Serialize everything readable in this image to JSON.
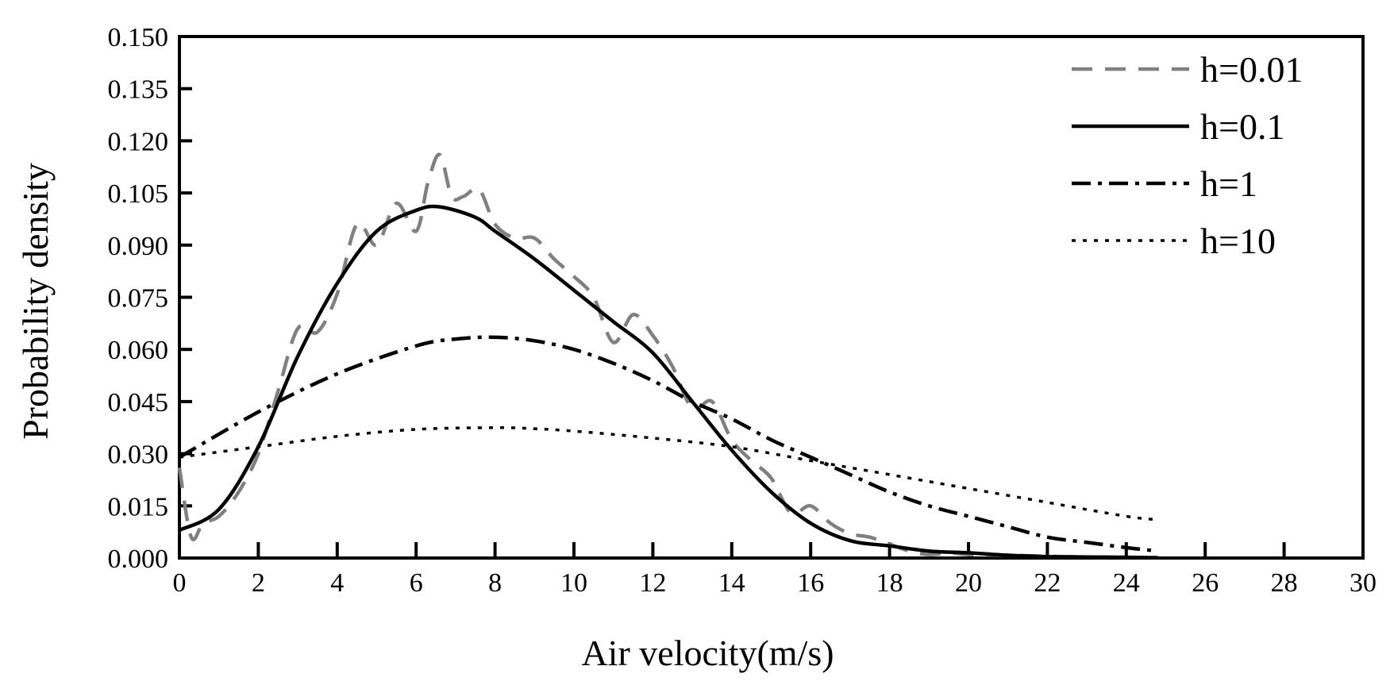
{
  "chart_data": {
    "type": "line",
    "title": "",
    "xlabel": "Air velocity(m/s)",
    "ylabel": "Probability density",
    "xlim": [
      0,
      30
    ],
    "ylim": [
      0,
      0.15
    ],
    "xticks": [
      "0",
      "2",
      "4",
      "6",
      "8",
      "10",
      "12",
      "14",
      "16",
      "18",
      "20",
      "22",
      "24",
      "26",
      "28",
      "30"
    ],
    "yticks": [
      "0.000",
      "0.015",
      "0.030",
      "0.045",
      "0.060",
      "0.075",
      "0.090",
      "0.105",
      "0.120",
      "0.135",
      "0.150"
    ],
    "grid": false,
    "legend_position": "top-right",
    "series": [
      {
        "name": "h=0.01",
        "color": "#808080",
        "dash": "dashed",
        "x": [
          0,
          0.3,
          0.6,
          1,
          1.5,
          2,
          2.5,
          3,
          3.5,
          4,
          4.5,
          5,
          5.5,
          6,
          6.3,
          6.6,
          6.9,
          7.2,
          7.6,
          8,
          8.5,
          9,
          9.5,
          10,
          10.5,
          11,
          11.5,
          12,
          12.5,
          13,
          13.5,
          14,
          14.5,
          15,
          15.5,
          16,
          16.5,
          17,
          17.5,
          18,
          18.5,
          19,
          19.5,
          20,
          21,
          22,
          23,
          24,
          24.8
        ],
        "y": [
          0.026,
          0.006,
          0.01,
          0.012,
          0.019,
          0.03,
          0.048,
          0.066,
          0.065,
          0.076,
          0.096,
          0.09,
          0.102,
          0.094,
          0.108,
          0.116,
          0.104,
          0.104,
          0.106,
          0.096,
          0.092,
          0.092,
          0.086,
          0.081,
          0.075,
          0.062,
          0.07,
          0.064,
          0.055,
          0.043,
          0.045,
          0.034,
          0.028,
          0.023,
          0.013,
          0.015,
          0.01,
          0.007,
          0.006,
          0.004,
          0.002,
          0.001,
          0.0015,
          0.001,
          0.0008,
          0.0005,
          0.0003,
          0.0002,
          0.0001
        ]
      },
      {
        "name": "h=0.1",
        "color": "#000000",
        "dash": "solid",
        "x": [
          0,
          1,
          2,
          3,
          4,
          5,
          6,
          6.6,
          7.5,
          8,
          9,
          10,
          11,
          12,
          13,
          14,
          15,
          16,
          17,
          18,
          19,
          20,
          21,
          22,
          23,
          24,
          24.8
        ],
        "y": [
          0.008,
          0.014,
          0.032,
          0.058,
          0.079,
          0.094,
          0.1,
          0.101,
          0.098,
          0.094,
          0.086,
          0.077,
          0.068,
          0.059,
          0.045,
          0.031,
          0.019,
          0.01,
          0.005,
          0.0035,
          0.002,
          0.0015,
          0.0008,
          0.0004,
          0.0003,
          0.0002,
          0.0001
        ]
      },
      {
        "name": "h=1",
        "color": "#000000",
        "dash": "dashdot",
        "x": [
          0,
          2,
          4,
          6,
          7,
          8,
          9,
          10,
          11,
          12,
          13,
          14,
          15,
          16,
          17,
          18,
          19,
          20,
          21,
          22,
          23,
          24,
          24.8
        ],
        "y": [
          0.029,
          0.042,
          0.053,
          0.061,
          0.063,
          0.0635,
          0.0625,
          0.06,
          0.056,
          0.051,
          0.045,
          0.04,
          0.034,
          0.029,
          0.024,
          0.019,
          0.015,
          0.012,
          0.009,
          0.006,
          0.0045,
          0.003,
          0.002
        ]
      },
      {
        "name": "h=10",
        "color": "#000000",
        "dash": "dotted",
        "x": [
          0,
          2,
          4,
          6,
          8,
          9,
          10,
          12,
          14,
          16,
          18,
          20,
          22,
          24,
          24.8
        ],
        "y": [
          0.029,
          0.032,
          0.035,
          0.037,
          0.0375,
          0.0372,
          0.0365,
          0.0345,
          0.032,
          0.028,
          0.024,
          0.02,
          0.016,
          0.012,
          0.011
        ]
      }
    ]
  }
}
